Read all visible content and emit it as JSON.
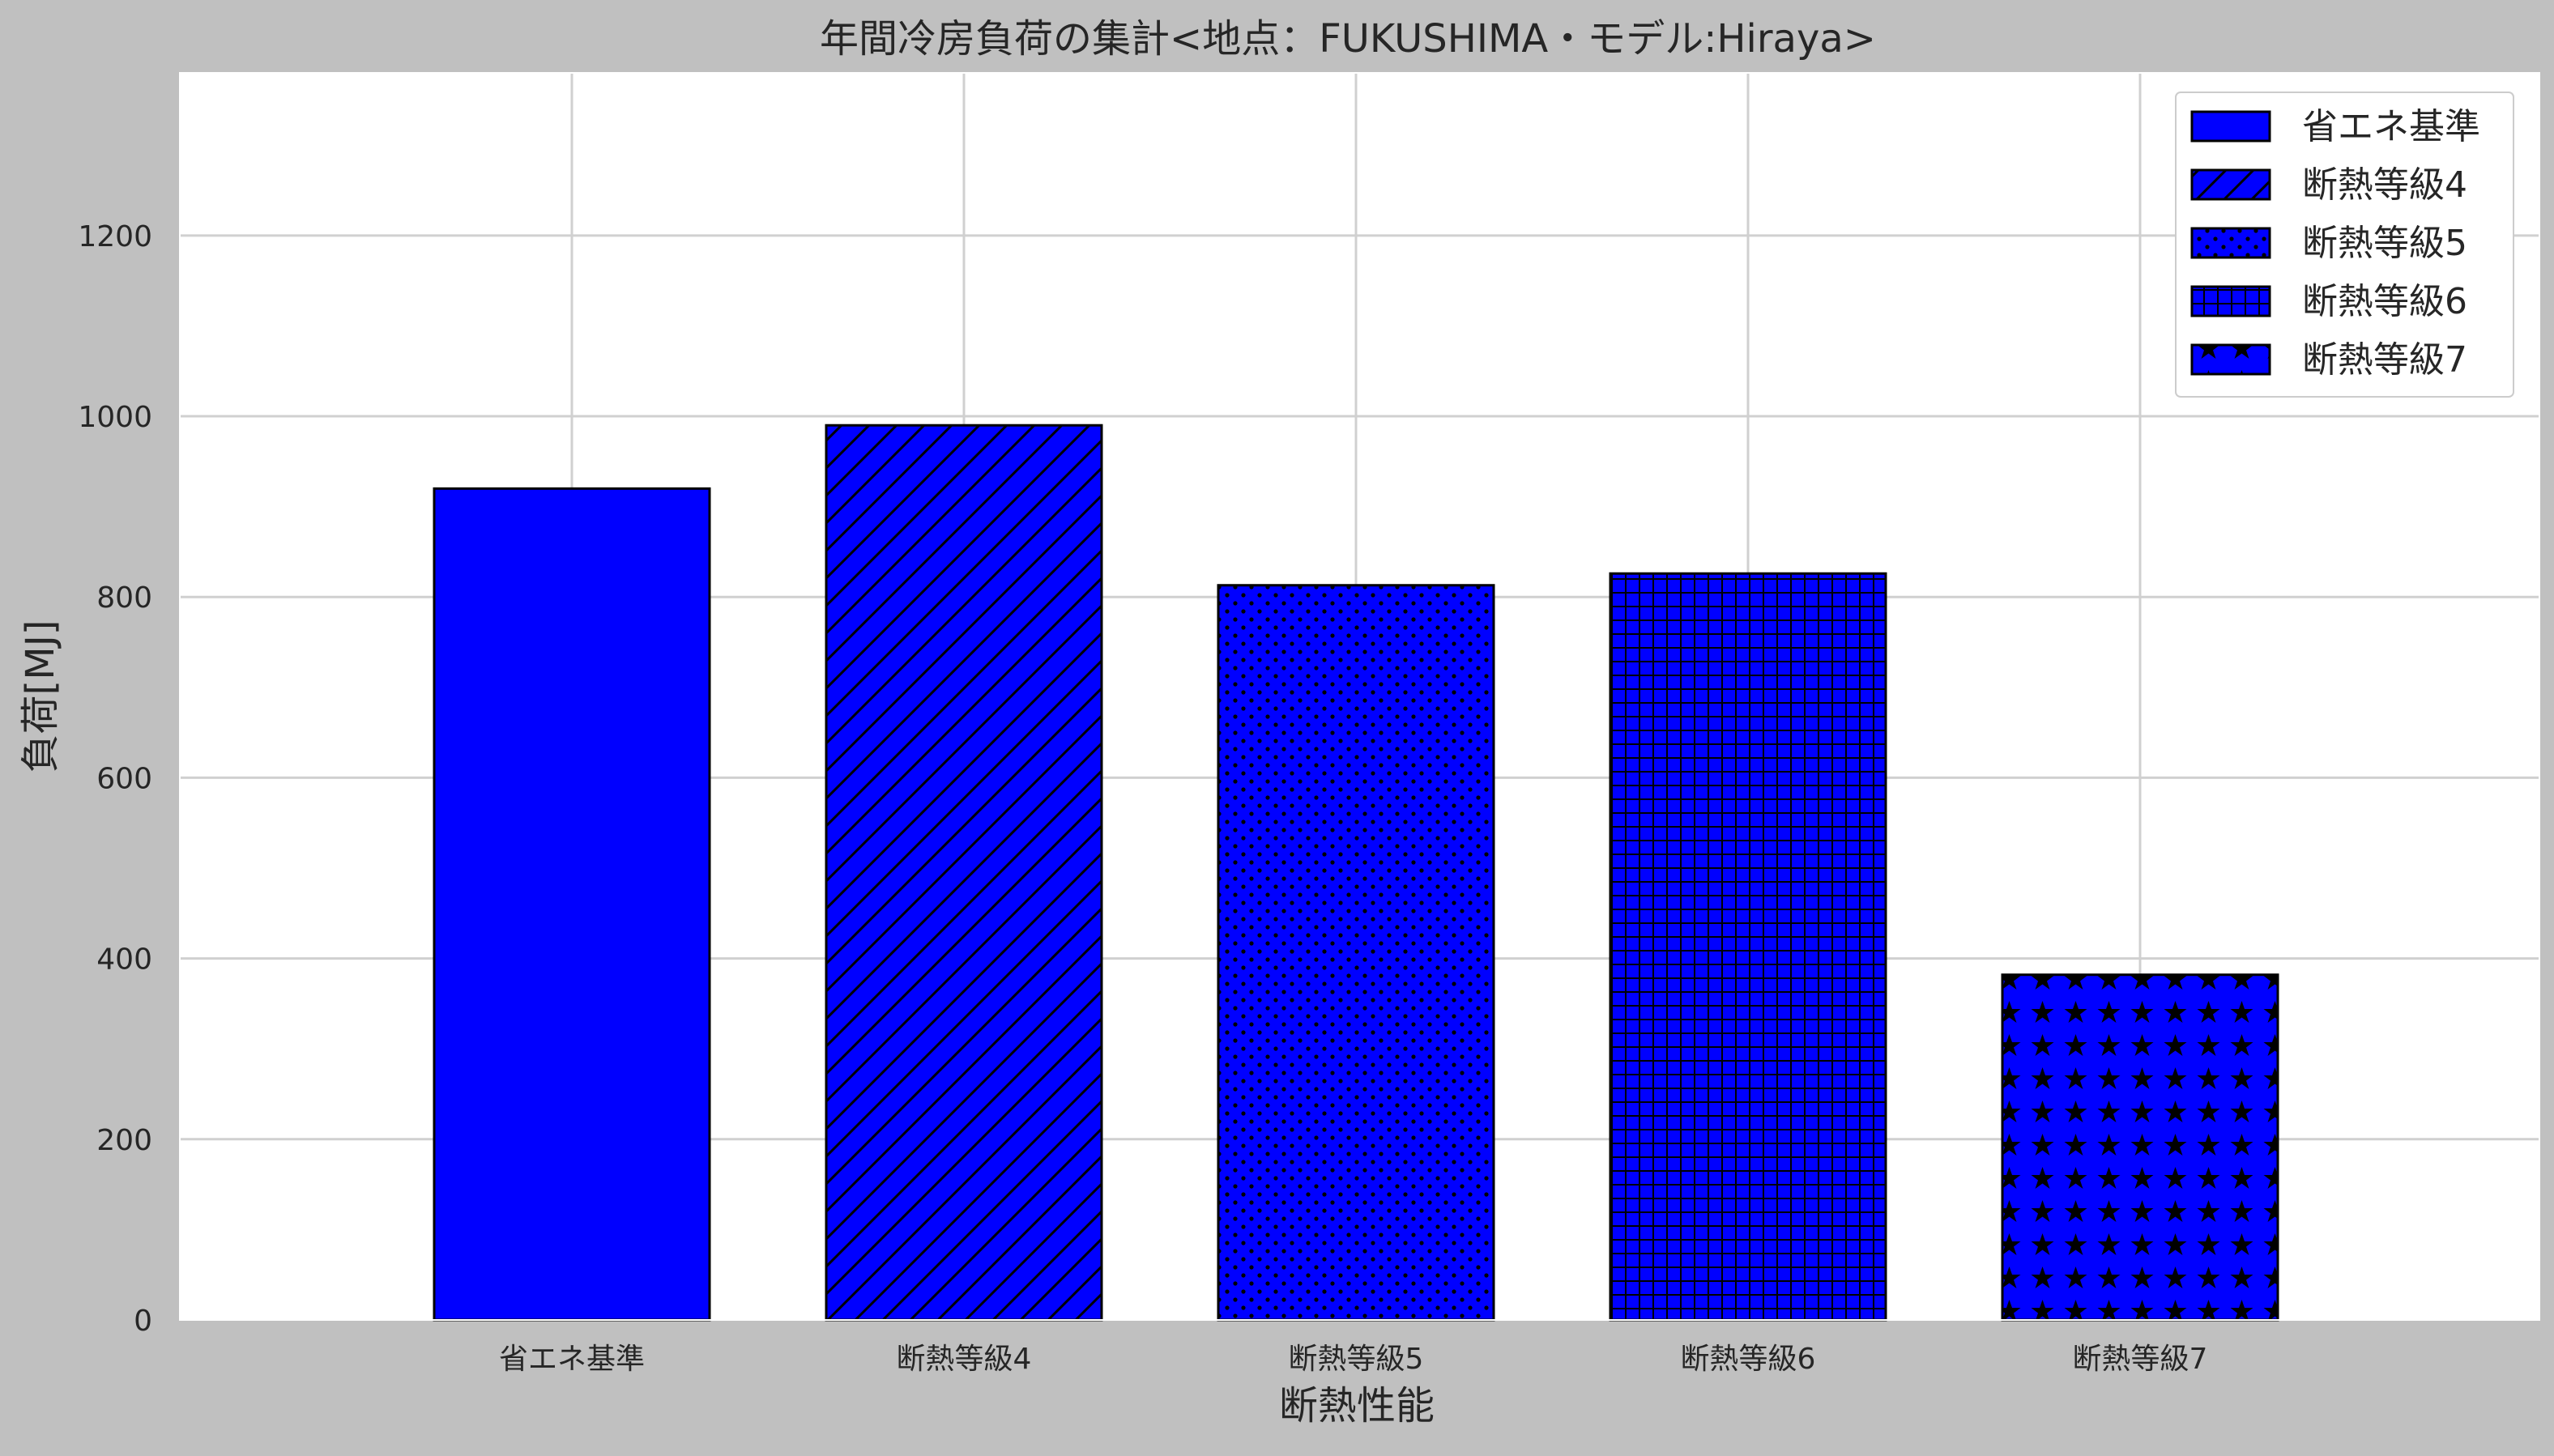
{
  "chart_data": {
    "type": "bar",
    "title": "年間冷房負荷の集計<地点：FUKUSHIMA・モデル:Hiraya>",
    "xlabel": "断熱性能",
    "ylabel": "負荷[MJ]",
    "categories": [
      "省エネ基準",
      "断熱等級4",
      "断熱等級5",
      "断熱等級6",
      "断熱等級7"
    ],
    "values": [
      920,
      990,
      813,
      826,
      382
    ],
    "hatches": [
      "none",
      "diagonal",
      "dots",
      "grid",
      "stars"
    ],
    "bar_color": "#0000ff",
    "edge_color": "#000000",
    "ylim": [
      0,
      1380
    ],
    "yticks": [
      0,
      200,
      400,
      600,
      800,
      1000,
      1200
    ],
    "grid": true,
    "legend": {
      "position": "top-right",
      "entries": [
        "省エネ基準",
        "断熱等級4",
        "断熱等級5",
        "断熱等級6",
        "断熱等級7"
      ]
    },
    "colors": {
      "background": "#c0c0c0",
      "plot_background": "#ffffff",
      "grid": "#d0d0d0"
    }
  }
}
